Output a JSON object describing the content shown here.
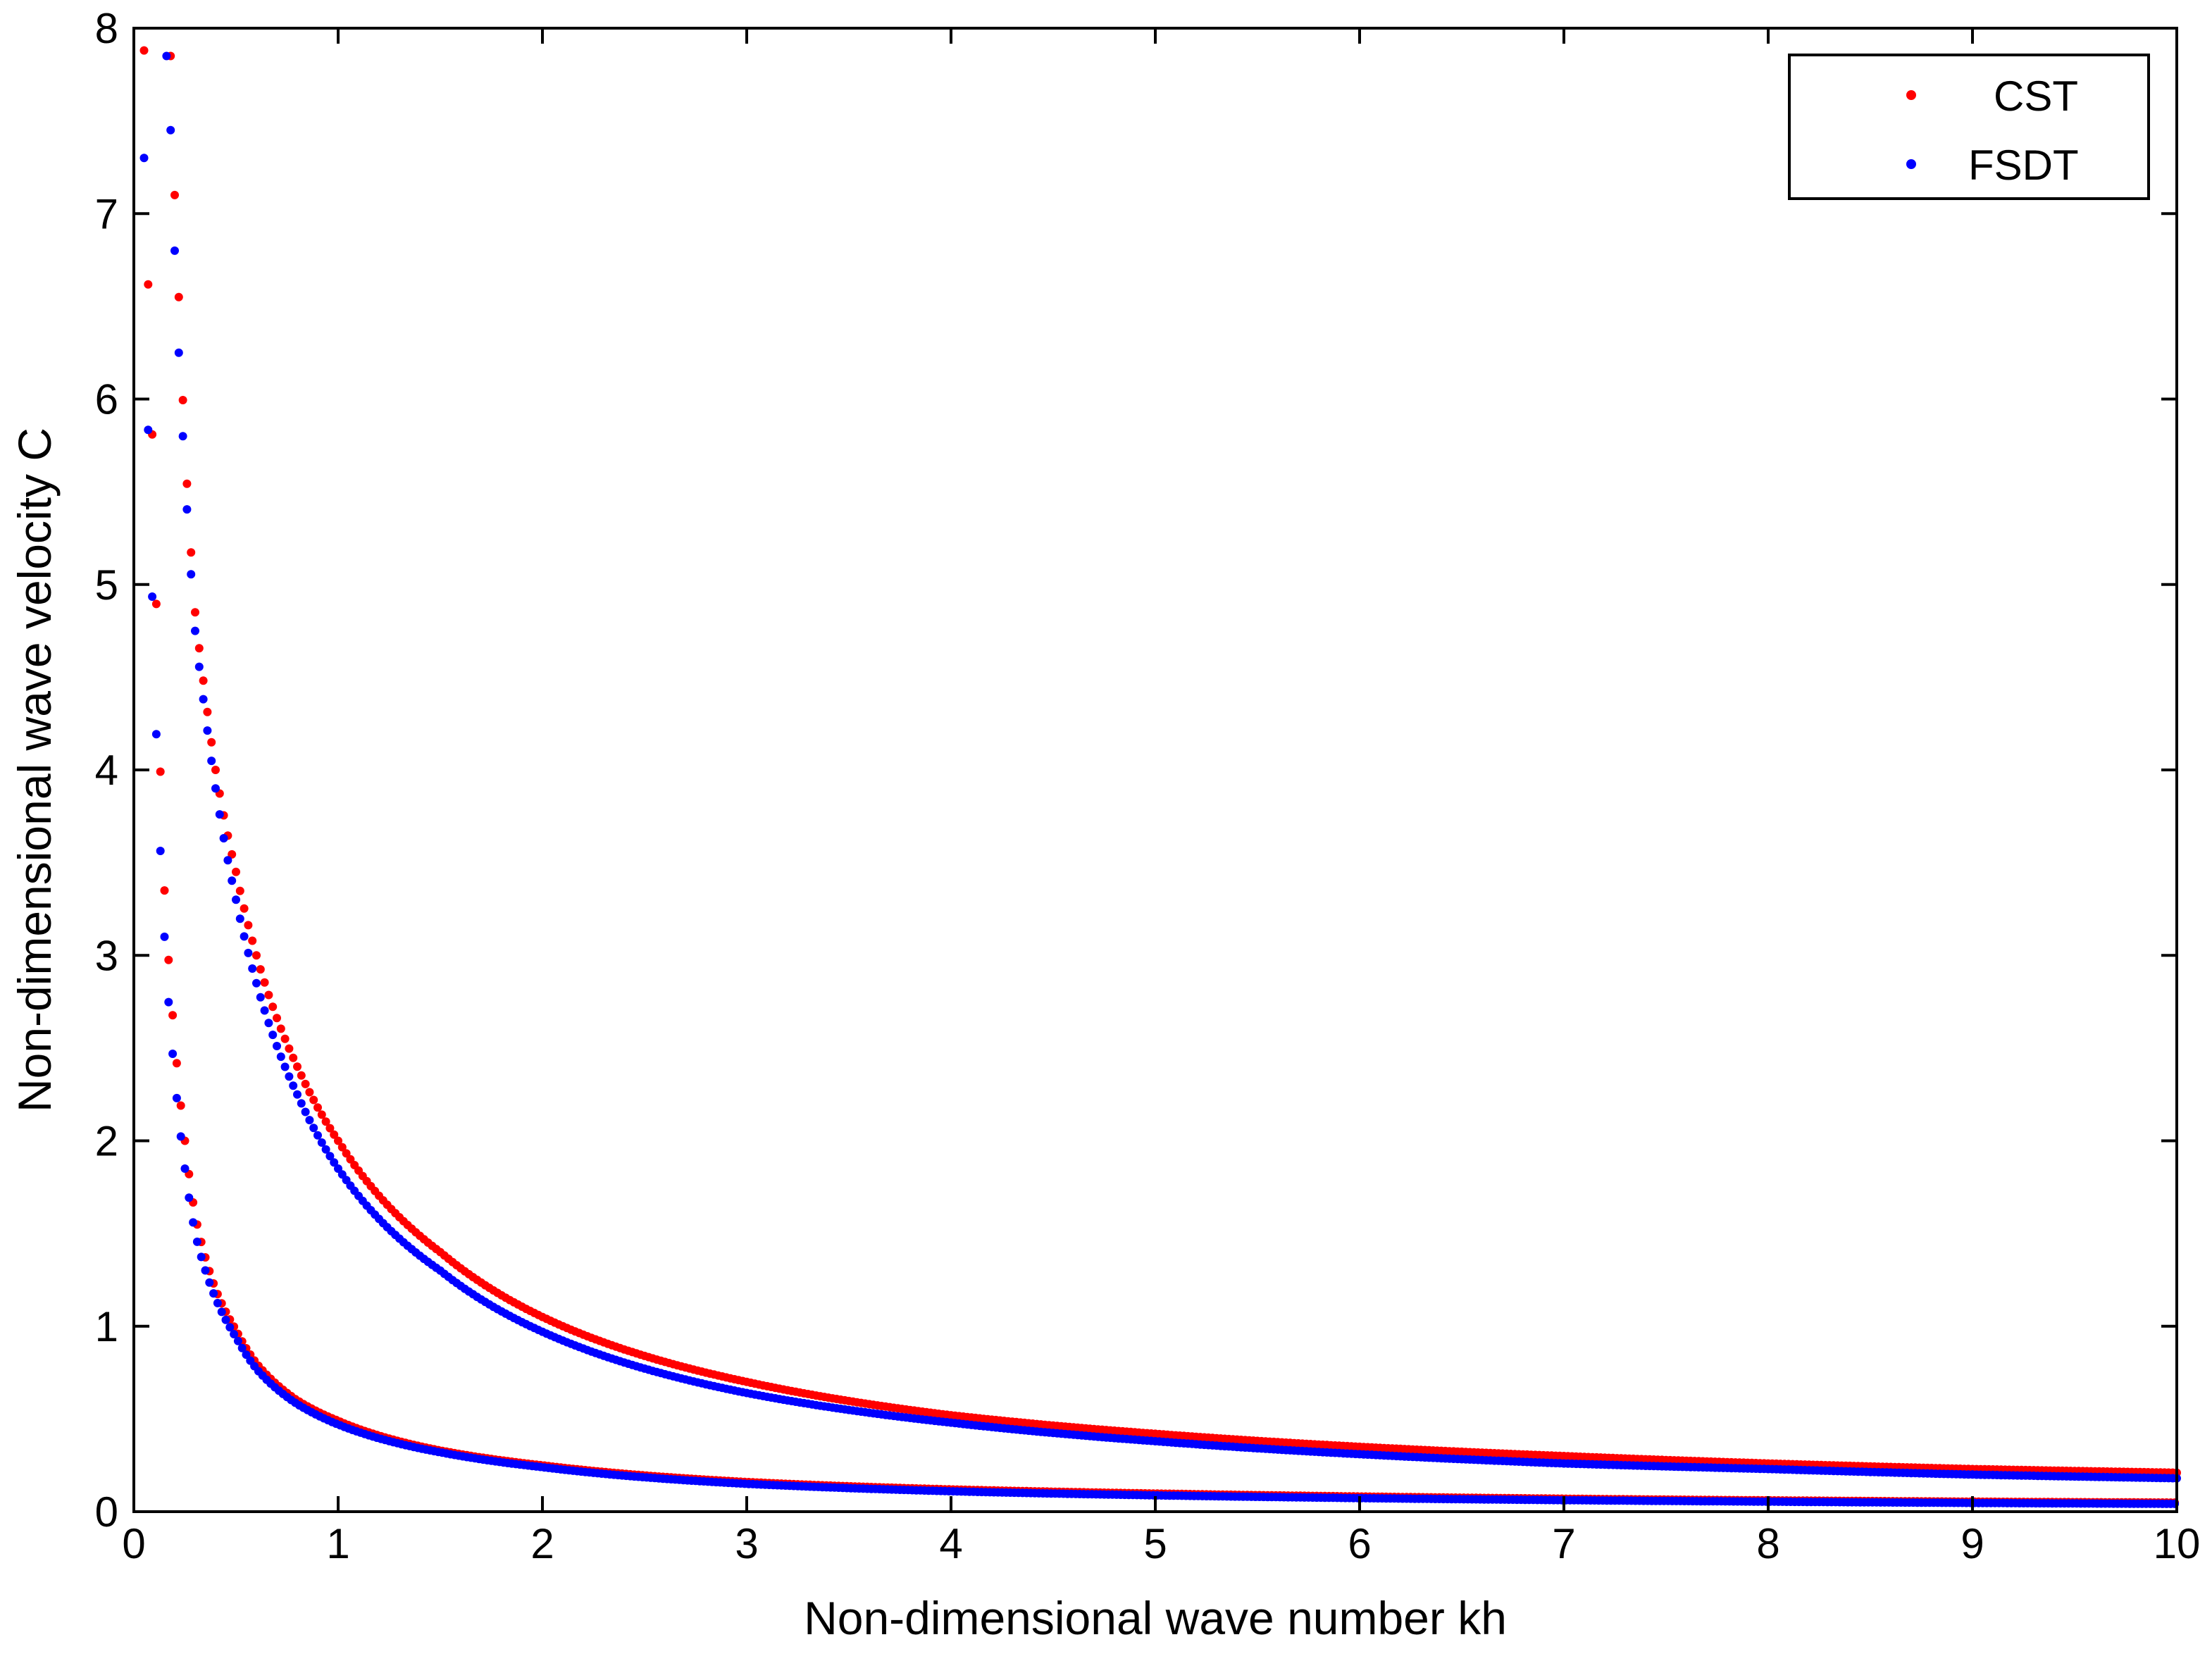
{
  "chart_data": {
    "type": "scatter",
    "title": "",
    "xlabel": "Non-dimensional wave number kh",
    "ylabel": "Non-dimensional wave velocity C",
    "xlim": [
      0,
      10
    ],
    "ylim": [
      0,
      8
    ],
    "xticks": [
      "0",
      "1",
      "2",
      "3",
      "4",
      "5",
      "6",
      "7",
      "8",
      "9",
      "10"
    ],
    "yticks": [
      "0",
      "1",
      "2",
      "3",
      "4",
      "5",
      "6",
      "7",
      "8"
    ],
    "grid": false,
    "legend_position": "top-right",
    "series": [
      {
        "name": "CST",
        "color": "#ff0000",
        "branches": [
          {
            "x": [
              0.05,
              0.1,
              0.15,
              0.2,
              0.25,
              0.3,
              0.4,
              0.5,
              0.6,
              0.8,
              1,
              1.5,
              2,
              3,
              4,
              5,
              6,
              7,
              8,
              9,
              10
            ],
            "y": [
              7.88,
              5.5,
              3.35,
              2.55,
              2.0,
              1.6,
              1.2,
              0.98,
              0.8,
              0.6,
              0.49,
              0.33,
              0.25,
              0.16,
              0.12,
              0.098,
              0.082,
              0.07,
              0.061,
              0.054,
              0.049
            ]
          },
          {
            "x": [
              0.18,
              0.2,
              0.22,
              0.25,
              0.3,
              0.35,
              0.4,
              0.5,
              0.6,
              0.8,
              1,
              1.5,
              2,
              3,
              4,
              5,
              6,
              7,
              8,
              9,
              10
            ],
            "y": [
              7.85,
              7.1,
              6.55,
              5.75,
              4.85,
              4.4,
              4.0,
              3.45,
              3.0,
              2.4,
              2.0,
              1.4,
              1.05,
              0.7,
              0.52,
              0.42,
              0.35,
              0.3,
              0.26,
              0.23,
              0.21
            ]
          }
        ]
      },
      {
        "name": "FSDT",
        "color": "#0000ff",
        "branches": [
          {
            "x": [
              0.05,
              0.1,
              0.15,
              0.2,
              0.25,
              0.3,
              0.4,
              0.5,
              0.6,
              0.8,
              1,
              1.5,
              2,
              3,
              4,
              5,
              6,
              7,
              8,
              9,
              10
            ],
            "y": [
              7.3,
              4.6,
              3.1,
              2.35,
              1.85,
              1.5,
              1.15,
              0.94,
              0.77,
              0.58,
              0.47,
              0.32,
              0.24,
              0.15,
              0.11,
              0.088,
              0.073,
              0.062,
              0.054,
              0.047,
              0.042
            ]
          },
          {
            "x": [
              0.16,
              0.18,
              0.2,
              0.22,
              0.25,
              0.3,
              0.35,
              0.4,
              0.5,
              0.6,
              0.8,
              1,
              1.5,
              2,
              3,
              4,
              5,
              6,
              7,
              8,
              9,
              10
            ],
            "y": [
              7.85,
              7.45,
              6.8,
              6.25,
              5.6,
              4.75,
              4.3,
              3.9,
              3.3,
              2.85,
              2.25,
              1.85,
              1.3,
              0.97,
              0.64,
              0.48,
              0.38,
              0.31,
              0.26,
              0.23,
              0.2,
              0.18
            ]
          }
        ]
      }
    ]
  }
}
